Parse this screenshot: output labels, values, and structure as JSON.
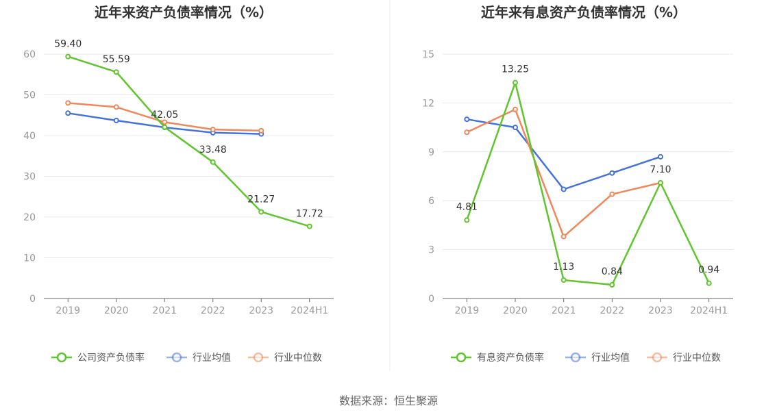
{
  "source_note": "数据来源：恒生聚源",
  "colors": {
    "green": "#5ec52b",
    "blue": "#4472dc",
    "orange": "#f0875a",
    "grid": "#e6e9f0",
    "axis": "#666666"
  },
  "chart_data": [
    {
      "type": "line",
      "title": "近年来资产负债率情况（%）",
      "categories": [
        "2019",
        "2020",
        "2021",
        "2022",
        "2023",
        "2024H1"
      ],
      "yticks": [
        "0",
        "10",
        "20",
        "30",
        "40",
        "50",
        "60"
      ],
      "ylim": [
        0,
        60
      ],
      "grid": true,
      "legend_position": "bottom",
      "series": [
        {
          "name": "公司资产负债率",
          "color": "green",
          "labeled": true,
          "values": [
            59.4,
            55.59,
            42.05,
            33.48,
            21.27,
            17.72
          ],
          "labels": [
            "59.40",
            "55.59",
            "42.05",
            "33.48",
            "21.27",
            "17.72"
          ]
        },
        {
          "name": "行业均值",
          "color": "blue",
          "labeled": false,
          "values": [
            45.5,
            43.7,
            42.0,
            40.7,
            40.4,
            null
          ]
        },
        {
          "name": "行业中位数",
          "color": "orange",
          "labeled": false,
          "values": [
            48.0,
            47.0,
            43.3,
            41.5,
            41.2,
            null
          ]
        }
      ]
    },
    {
      "type": "line",
      "title": "近年来有息资产负债率情况（%）",
      "categories": [
        "2019",
        "2020",
        "2021",
        "2022",
        "2023",
        "2024H1"
      ],
      "yticks": [
        "0",
        "3",
        "6",
        "9",
        "12",
        "15"
      ],
      "ylim": [
        0,
        15
      ],
      "grid": true,
      "legend_position": "bottom",
      "series": [
        {
          "name": "有息资产负债率",
          "color": "green",
          "labeled": true,
          "values": [
            4.81,
            13.25,
            1.13,
            0.84,
            7.1,
            0.94
          ],
          "labels": [
            "4.81",
            "13.25",
            "1.13",
            "0.84",
            "7.10",
            "0.94"
          ]
        },
        {
          "name": "行业均值",
          "color": "blue",
          "labeled": false,
          "values": [
            11.0,
            10.5,
            6.7,
            7.7,
            8.7,
            null
          ]
        },
        {
          "name": "行业中位数",
          "color": "orange",
          "labeled": false,
          "values": [
            10.2,
            11.6,
            3.8,
            6.4,
            7.1,
            null
          ]
        }
      ]
    }
  ]
}
